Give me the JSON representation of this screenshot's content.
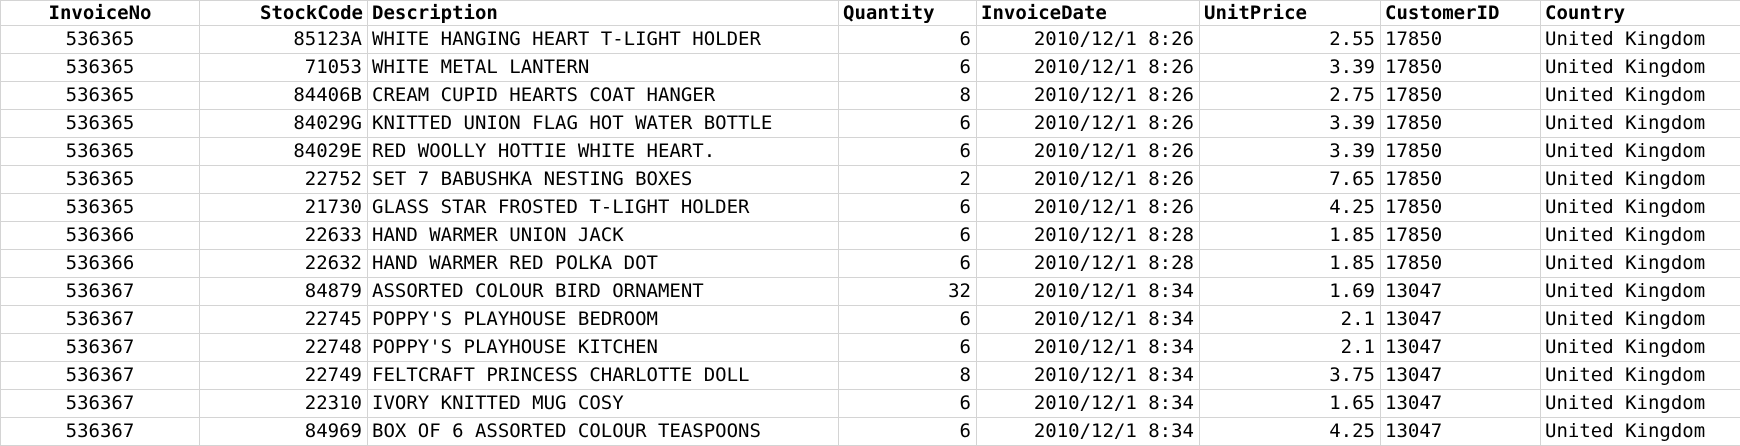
{
  "sheet": {
    "headers": [
      "InvoiceNo",
      "StockCode",
      "Description",
      "Quantity",
      "InvoiceDate",
      "UnitPrice",
      "CustomerID",
      "Country"
    ],
    "rows": [
      [
        "536365",
        "85123A",
        "WHITE HANGING HEART T-LIGHT HOLDER",
        "6",
        "2010/12/1 8:26",
        "2.55",
        "17850",
        "United Kingdom"
      ],
      [
        "536365",
        "71053",
        "WHITE METAL LANTERN",
        "6",
        "2010/12/1 8:26",
        "3.39",
        "17850",
        "United Kingdom"
      ],
      [
        "536365",
        "84406B",
        "CREAM CUPID HEARTS COAT HANGER",
        "8",
        "2010/12/1 8:26",
        "2.75",
        "17850",
        "United Kingdom"
      ],
      [
        "536365",
        "84029G",
        "KNITTED UNION FLAG HOT WATER BOTTLE",
        "6",
        "2010/12/1 8:26",
        "3.39",
        "17850",
        "United Kingdom"
      ],
      [
        "536365",
        "84029E",
        "RED WOOLLY HOTTIE WHITE HEART.",
        "6",
        "2010/12/1 8:26",
        "3.39",
        "17850",
        "United Kingdom"
      ],
      [
        "536365",
        "22752",
        "SET 7 BABUSHKA NESTING BOXES",
        "2",
        "2010/12/1 8:26",
        "7.65",
        "17850",
        "United Kingdom"
      ],
      [
        "536365",
        "21730",
        "GLASS STAR FROSTED T-LIGHT HOLDER",
        "6",
        "2010/12/1 8:26",
        "4.25",
        "17850",
        "United Kingdom"
      ],
      [
        "536366",
        "22633",
        "HAND WARMER UNION JACK",
        "6",
        "2010/12/1 8:28",
        "1.85",
        "17850",
        "United Kingdom"
      ],
      [
        "536366",
        "22632",
        "HAND WARMER RED POLKA DOT",
        "6",
        "2010/12/1 8:28",
        "1.85",
        "17850",
        "United Kingdom"
      ],
      [
        "536367",
        "84879",
        "ASSORTED COLOUR BIRD ORNAMENT",
        "32",
        "2010/12/1 8:34",
        "1.69",
        "13047",
        "United Kingdom"
      ],
      [
        "536367",
        "22745",
        "POPPY'S PLAYHOUSE BEDROOM",
        "6",
        "2010/12/1 8:34",
        "2.1",
        "13047",
        "United Kingdom"
      ],
      [
        "536367",
        "22748",
        "POPPY'S PLAYHOUSE KITCHEN",
        "6",
        "2010/12/1 8:34",
        "2.1",
        "13047",
        "United Kingdom"
      ],
      [
        "536367",
        "22749",
        "FELTCRAFT PRINCESS CHARLOTTE DOLL",
        "8",
        "2010/12/1 8:34",
        "3.75",
        "13047",
        "United Kingdom"
      ],
      [
        "536367",
        "22310",
        "IVORY KNITTED MUG COSY",
        "6",
        "2010/12/1 8:34",
        "1.65",
        "13047",
        "United Kingdom"
      ],
      [
        "536367",
        "84969",
        "BOX OF 6 ASSORTED COLOUR TEASPOONS",
        "6",
        "2010/12/1 8:34",
        "4.25",
        "13047",
        "United Kingdom"
      ]
    ]
  },
  "colors": {
    "gridline": "#d4d4d4",
    "text": "#000000",
    "background": "#ffffff"
  }
}
